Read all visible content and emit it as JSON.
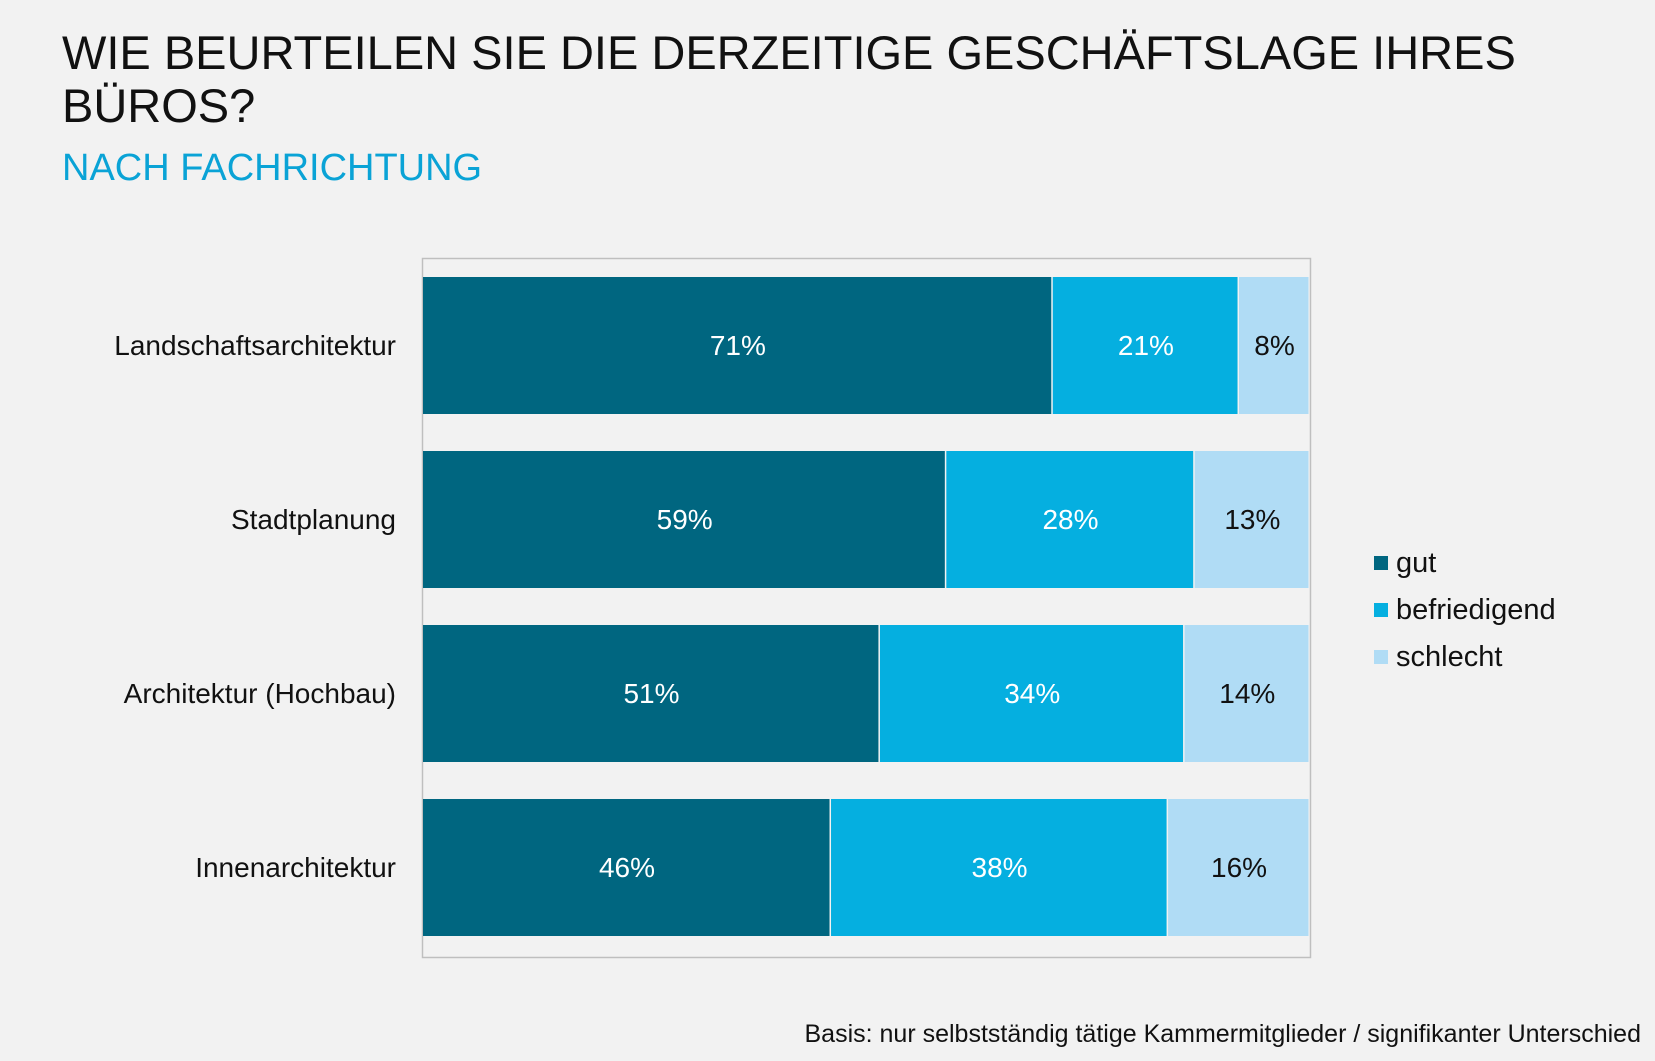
{
  "title": "WIE BEURTEILEN SIE DIE DERZEITIGE GESCHÄFTSLAGE IHRES BÜROS?",
  "subtitle": "NACH FACHRICHTUNG",
  "footnote": "Basis: nur selbstständig tätige Kammermitglieder / signifikanter Unterschied",
  "colors": {
    "gut": "#006680",
    "befriedigend": "#05afe0",
    "schlecht": "#b0dcf5",
    "background": "#f2f2f2"
  },
  "chart_data": {
    "type": "bar",
    "orientation": "horizontal",
    "stacked": true,
    "categories": [
      "Landschaftsarchitektur",
      "Stadtplanung",
      "Architektur (Hochbau)",
      "Innenarchitektur"
    ],
    "series": [
      {
        "name": "gut",
        "color": "#006680",
        "values": [
          71,
          59,
          51,
          46
        ],
        "labels": [
          "71%",
          "59%",
          "51%",
          "46%"
        ]
      },
      {
        "name": "befriedigend",
        "color": "#05afe0",
        "values": [
          21,
          28,
          34,
          38
        ],
        "labels": [
          "21%",
          "28%",
          "34%",
          "38%"
        ]
      },
      {
        "name": "schlecht",
        "color": "#b0dcf5",
        "values": [
          8,
          13,
          14,
          16
        ],
        "labels": [
          "8%",
          "13%",
          "14%",
          "16%"
        ]
      }
    ],
    "xlim": [
      0,
      100
    ],
    "legend_position": "right"
  }
}
